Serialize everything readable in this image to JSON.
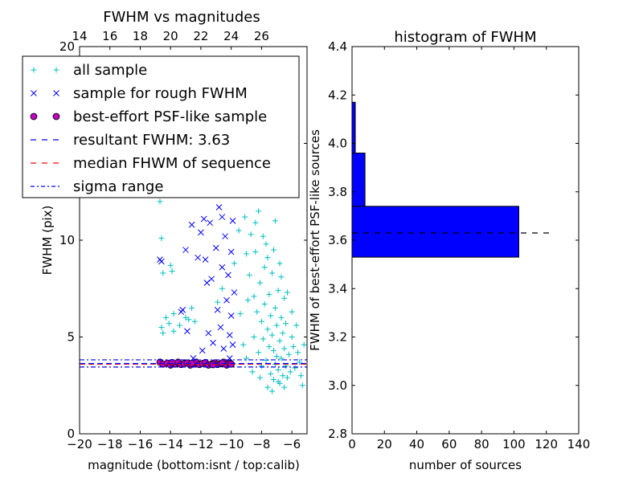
{
  "chart_data": [
    {
      "type": "scatter",
      "title": "FWHM vs magnitudes",
      "xlabel": "magnitude (bottom:isnt / top:calib)",
      "ylabel": "FWHM (pix)",
      "xlim": [
        -20,
        -5
      ],
      "ylim": [
        0,
        20
      ],
      "x_ticks": [
        "−20",
        "−18",
        "−16",
        "−14",
        "−12",
        "−10",
        "−8",
        "−6"
      ],
      "x_tick_values": [
        -20,
        -18,
        -16,
        -14,
        -12,
        -10,
        -8,
        -6
      ],
      "y_ticks": [
        "0",
        "5",
        "10",
        "15",
        "20"
      ],
      "y_tick_values": [
        0,
        5,
        10,
        15,
        20
      ],
      "top_ticks": [
        "14",
        "16",
        "18",
        "20",
        "22",
        "24",
        "26"
      ],
      "top_tick_values": [
        14,
        16,
        18,
        20,
        22,
        24,
        26
      ],
      "top_offset": 34,
      "legend_position": "upper-left",
      "legend": [
        {
          "label": "all sample",
          "marker": "plus",
          "color": "#00bfbf"
        },
        {
          "label": "sample for rough FWHM",
          "marker": "x",
          "color": "#0000ff"
        },
        {
          "label": "best-effort PSF-like sample",
          "marker": "circle",
          "color": "#bf00bf"
        },
        {
          "label": "resultant FWHM: 3.63",
          "line": "dashed",
          "color": "#0000ff"
        },
        {
          "label": "median FHWM of sequence",
          "line": "dashed",
          "color": "#ff0000"
        },
        {
          "label": "sigma range",
          "line": "dashdot",
          "color": "#0000ff"
        }
      ],
      "lines": {
        "resultant_fwhm": 3.63,
        "median_fwhm": 3.6,
        "sigma_range": [
          3.45,
          3.82
        ]
      },
      "series": [
        {
          "name": "all sample",
          "marker": "plus",
          "color": "#00bfbf",
          "points": [
            [
              -14.7,
              12.0
            ],
            [
              -14.6,
              10.1
            ],
            [
              -14.6,
              5.5
            ],
            [
              -14.5,
              5.2
            ],
            [
              -14.5,
              8.3
            ],
            [
              -14.3,
              6.0
            ],
            [
              -14.1,
              5.7
            ],
            [
              -14.0,
              8.7
            ],
            [
              -13.9,
              8.4
            ],
            [
              -13.8,
              6.2
            ],
            [
              -13.8,
              5.3
            ],
            [
              -13.4,
              5.6
            ],
            [
              -13.0,
              6.0
            ],
            [
              -12.8,
              5.9
            ],
            [
              -12.6,
              6.5
            ],
            [
              -12.4,
              5.8
            ],
            [
              -12.0,
              14.0
            ],
            [
              -11.8,
              17.0
            ],
            [
              -11.4,
              18.5
            ],
            [
              -11.2,
              15.5
            ],
            [
              -11.0,
              16.8
            ],
            [
              -10.8,
              14.6
            ],
            [
              -10.5,
              19.2
            ],
            [
              -10.2,
              17.6
            ],
            [
              -10.0,
              18.2
            ],
            [
              -9.6,
              13.2
            ],
            [
              -9.3,
              15.6
            ],
            [
              -9.1,
              11.2
            ],
            [
              -9.0,
              9.3
            ],
            [
              -8.8,
              8.2
            ],
            [
              -8.7,
              10.3
            ],
            [
              -8.6,
              12.6
            ],
            [
              -8.5,
              7.1
            ],
            [
              -8.5,
              5.0
            ],
            [
              -8.4,
              9.4
            ],
            [
              -8.3,
              6.3
            ],
            [
              -8.2,
              11.5
            ],
            [
              -8.2,
              4.2
            ],
            [
              -8.1,
              7.8
            ],
            [
              -8.0,
              5.8
            ],
            [
              -8.0,
              3.5
            ],
            [
              -7.9,
              10.2
            ],
            [
              -7.9,
              4.9
            ],
            [
              -7.8,
              8.6
            ],
            [
              -7.8,
              6.7
            ],
            [
              -7.7,
              3.8
            ],
            [
              -7.6,
              5.4
            ],
            [
              -7.6,
              9.1
            ],
            [
              -7.5,
              4.5
            ],
            [
              -7.5,
              7.2
            ],
            [
              -7.4,
              3.1
            ],
            [
              -7.4,
              6.1
            ],
            [
              -7.3,
              5.1
            ],
            [
              -7.3,
              8.3
            ],
            [
              -7.2,
              4.3
            ],
            [
              -7.2,
              2.8
            ],
            [
              -7.1,
              6.5
            ],
            [
              -7.1,
              3.6
            ],
            [
              -7.0,
              5.6
            ],
            [
              -7.0,
              4.0
            ],
            [
              -6.9,
              7.4
            ],
            [
              -6.9,
              3.3
            ],
            [
              -6.8,
              4.8
            ],
            [
              -6.8,
              2.6
            ],
            [
              -6.7,
              6.0
            ],
            [
              -6.7,
              3.9
            ],
            [
              -6.6,
              5.2
            ],
            [
              -6.6,
              3.0
            ],
            [
              -6.5,
              4.4
            ],
            [
              -6.5,
              7.0
            ],
            [
              -6.4,
              3.5
            ],
            [
              -6.4,
              5.7
            ],
            [
              -6.3,
              2.9
            ],
            [
              -6.2,
              4.1
            ],
            [
              -6.1,
              3.2
            ],
            [
              -6.0,
              5.0
            ],
            [
              -5.9,
              4.5
            ],
            [
              -5.8,
              3.4
            ],
            [
              -5.6,
              4.2
            ],
            [
              -5.5,
              3.7
            ],
            [
              -5.3,
              2.5
            ],
            [
              -5.2,
              4.6
            ],
            [
              -8.3,
              17.4
            ],
            [
              -7.9,
              14.4
            ],
            [
              -7.6,
              12.9
            ],
            [
              -7.1,
              11.0
            ],
            [
              -6.8,
              8.8
            ],
            [
              -6.3,
              7.3
            ],
            [
              -9.4,
              6.2
            ],
            [
              -9.2,
              4.6
            ],
            [
              -9.0,
              3.9
            ],
            [
              -8.9,
              6.9
            ],
            [
              -10.6,
              7.5
            ],
            [
              -10.9,
              6.8
            ],
            [
              -9.8,
              8.8
            ],
            [
              -9.5,
              10.5
            ],
            [
              -8.0,
              13.6
            ],
            [
              -7.7,
              9.8
            ],
            [
              -8.4,
              10.9
            ],
            [
              -7.2,
              9.5
            ],
            [
              -6.7,
              8.1
            ],
            [
              -6.0,
              6.3
            ],
            [
              -5.7,
              5.6
            ],
            [
              -5.4,
              3.0
            ],
            [
              -8.6,
              3.2
            ],
            [
              -8.1,
              2.9
            ],
            [
              -7.6,
              2.4
            ],
            [
              -7.3,
              2.2
            ],
            [
              -6.9,
              2.7
            ],
            [
              -6.5,
              2.4
            ]
          ]
        },
        {
          "name": "sample for rough FWHM",
          "marker": "x",
          "color": "#0000ff",
          "points": [
            [
              -14.7,
              9.0
            ],
            [
              -14.6,
              8.9
            ],
            [
              -13.3,
              6.3
            ],
            [
              -13.2,
              6.4
            ],
            [
              -13.0,
              9.5
            ],
            [
              -12.9,
              5.3
            ],
            [
              -12.5,
              3.9
            ],
            [
              -12.2,
              9.1
            ],
            [
              -12.0,
              10.4
            ],
            [
              -11.9,
              4.3
            ],
            [
              -11.8,
              11.1
            ],
            [
              -11.6,
              7.8
            ],
            [
              -11.5,
              5.2
            ],
            [
              -11.4,
              10.9
            ],
            [
              -11.3,
              8.0
            ],
            [
              -11.2,
              4.7
            ],
            [
              -11.1,
              12.6
            ],
            [
              -11.0,
              9.6
            ],
            [
              -10.9,
              6.4
            ],
            [
              -10.8,
              11.7
            ],
            [
              -10.7,
              5.5
            ],
            [
              -10.6,
              8.6
            ],
            [
              -10.5,
              4.4
            ],
            [
              -10.4,
              10.2
            ],
            [
              -10.3,
              6.9
            ],
            [
              -10.2,
              8.2
            ],
            [
              -10.1,
              5.1
            ],
            [
              -10.0,
              9.4
            ],
            [
              -10.0,
              6.1
            ],
            [
              -9.9,
              11.0
            ],
            [
              -9.9,
              4.6
            ],
            [
              -9.8,
              7.3
            ],
            [
              -10.1,
              3.9
            ],
            [
              -12.6,
              10.8
            ],
            [
              -11.7,
              9.0
            ],
            [
              -10.6,
              11.2
            ]
          ]
        },
        {
          "name": "best-effort PSF-like sample",
          "marker": "circle",
          "color": "#bf00bf",
          "points": [
            [
              -14.7,
              3.7
            ],
            [
              -14.5,
              3.6
            ],
            [
              -14.2,
              3.65
            ],
            [
              -14.0,
              3.55
            ],
            [
              -13.7,
              3.6
            ],
            [
              -13.5,
              3.7
            ],
            [
              -13.3,
              3.58
            ],
            [
              -13.1,
              3.62
            ],
            [
              -12.9,
              3.66
            ],
            [
              -12.7,
              3.55
            ],
            [
              -12.5,
              3.6
            ],
            [
              -12.3,
              3.7
            ],
            [
              -12.1,
              3.58
            ],
            [
              -11.9,
              3.63
            ],
            [
              -11.7,
              3.68
            ],
            [
              -11.5,
              3.55
            ],
            [
              -11.3,
              3.6
            ],
            [
              -11.1,
              3.66
            ],
            [
              -10.9,
              3.58
            ],
            [
              -10.7,
              3.62
            ],
            [
              -10.5,
              3.7
            ],
            [
              -10.3,
              3.55
            ],
            [
              -10.1,
              3.64
            ],
            [
              -10.0,
              3.6
            ],
            [
              -13.9,
              3.68
            ],
            [
              -12.6,
              3.64
            ],
            [
              -11.2,
              3.57
            ],
            [
              -10.6,
              3.66
            ]
          ]
        }
      ]
    },
    {
      "type": "bar",
      "orientation": "horizontal",
      "title": "histogram of FWHM",
      "xlabel": "number of sources",
      "ylabel": "FWHM of best-effort PSF-like sources",
      "xlim": [
        0,
        140
      ],
      "ylim": [
        2.8,
        4.4
      ],
      "x_ticks": [
        "0",
        "20",
        "40",
        "60",
        "80",
        "100",
        "120",
        "140"
      ],
      "x_tick_values": [
        0,
        20,
        40,
        60,
        80,
        100,
        120,
        140
      ],
      "y_ticks": [
        "2.8",
        "3.0",
        "3.2",
        "3.4",
        "3.6",
        "3.8",
        "4.0",
        "4.2",
        "4.4"
      ],
      "y_tick_values": [
        2.8,
        3.0,
        3.2,
        3.4,
        3.6,
        3.8,
        4.0,
        4.2,
        4.4
      ],
      "color": "#0000ff",
      "bins": [
        {
          "low": 3.53,
          "high": 3.74,
          "count": 103
        },
        {
          "low": 3.74,
          "high": 3.96,
          "count": 8
        },
        {
          "low": 3.96,
          "high": 4.17,
          "count": 2
        }
      ],
      "reference_line": {
        "value": 3.63,
        "x_range": [
          0,
          122
        ],
        "style": "dashed",
        "color": "#000000"
      }
    }
  ]
}
